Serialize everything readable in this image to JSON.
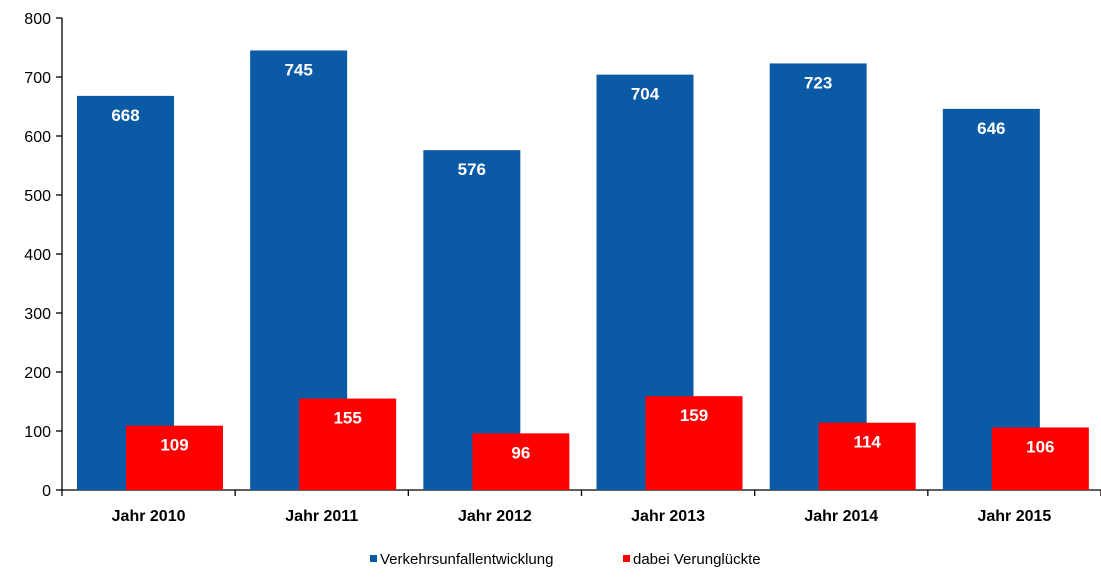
{
  "chart_data": {
    "type": "bar",
    "categories": [
      "Jahr 2010",
      "Jahr 2011",
      "Jahr 2012",
      "Jahr 2013",
      "Jahr 2014",
      "Jahr 2015"
    ],
    "series": [
      {
        "name": "Verkehrsunfallentwicklung",
        "color": "#0b5aa6",
        "label_color": "#ffffff",
        "values": [
          668,
          745,
          576,
          704,
          723,
          646
        ]
      },
      {
        "name": "dabei Verunglückte",
        "color": "#ff0000",
        "label_color": "#ffffff",
        "values": [
          109,
          155,
          96,
          159,
          114,
          106
        ]
      }
    ],
    "ylim": [
      0,
      800
    ],
    "yticks": [
      "0",
      "100",
      "200",
      "300",
      "400",
      "500",
      "600",
      "700",
      "800"
    ],
    "grid": false,
    "legend": "bottom",
    "data_labels": true
  }
}
